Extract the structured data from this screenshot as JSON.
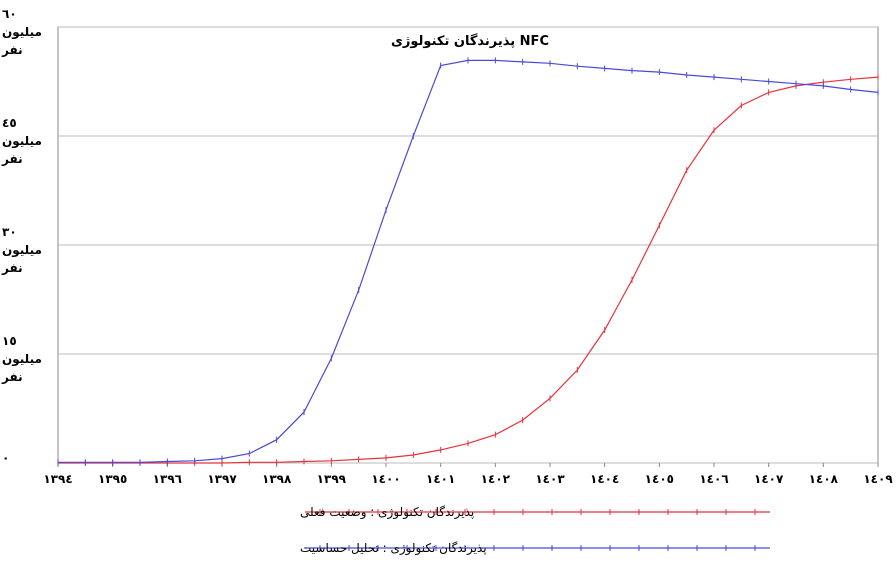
{
  "chart_data": {
    "type": "line",
    "title": "پذیرندگان تکنولوژی NFC",
    "x": [
      1394,
      1394.5,
      1395,
      1395.5,
      1396,
      1396.5,
      1397,
      1397.5,
      1398,
      1398.5,
      1399,
      1399.5,
      1400,
      1400.5,
      1401,
      1401.5,
      1402,
      1402.5,
      1403,
      1403.5,
      1404,
      1404.5,
      1405,
      1405.5,
      1406,
      1406.5,
      1407,
      1407.5,
      1408,
      1408.5,
      1409
    ],
    "series": [
      {
        "name": "پذیرندگان تکنولوژی : وضعیت فعلی",
        "color": "#e8323c",
        "values": [
          0,
          0,
          0,
          0,
          0,
          0,
          0,
          0.1,
          0.1,
          0.2,
          0.3,
          0.5,
          0.7,
          1.1,
          1.8,
          2.7,
          3.9,
          5.9,
          8.9,
          12.8,
          18.3,
          25.2,
          32.7,
          40.3,
          45.8,
          49.2,
          51,
          51.9,
          52.4,
          52.8,
          53.1
        ]
      },
      {
        "name": "پذیرندگان تکنولوژی : تحلیل حساسیت",
        "color": "#4a4ad8",
        "values": [
          0.1,
          0.1,
          0.1,
          0.1,
          0.2,
          0.3,
          0.6,
          1.3,
          3.2,
          7,
          14.4,
          23.8,
          34.8,
          45,
          54.7,
          55.4,
          55.4,
          55.2,
          55,
          54.6,
          54.3,
          54,
          53.8,
          53.4,
          53.1,
          52.8,
          52.5,
          52.2,
          51.9,
          51.4,
          51
        ]
      }
    ],
    "xlim": [
      1394,
      1409
    ],
    "xticks": [
      {
        "value": 1394,
        "label": "١٣٩٤"
      },
      {
        "value": 1395,
        "label": "١٣٩٥"
      },
      {
        "value": 1396,
        "label": "١٣٩٦"
      },
      {
        "value": 1397,
        "label": "١٣٩٧"
      },
      {
        "value": 1398,
        "label": "١٣٩٨"
      },
      {
        "value": 1399,
        "label": "١٣٩٩"
      },
      {
        "value": 1400,
        "label": "١٤٠٠"
      },
      {
        "value": 1401,
        "label": "١٤٠١"
      },
      {
        "value": 1402,
        "label": "١٤٠٢"
      },
      {
        "value": 1403,
        "label": "١٤٠٣"
      },
      {
        "value": 1404,
        "label": "١٤٠٤"
      },
      {
        "value": 1405,
        "label": "١٤٠٥"
      },
      {
        "value": 1406,
        "label": "١٤٠٦"
      },
      {
        "value": 1407,
        "label": "١٤٠٧"
      },
      {
        "value": 1408,
        "label": "١٤٠٨"
      },
      {
        "value": 1409,
        "label": "١٤٠٩"
      }
    ],
    "ylim": [
      0,
      60
    ],
    "yticks": [
      {
        "value": 0,
        "label": "٠"
      },
      {
        "value": 15,
        "label": "١٥\nمیلیون\nنفر"
      },
      {
        "value": 30,
        "label": "٣٠\nمیلیون\nنفر"
      },
      {
        "value": 45,
        "label": "٤٥\nمیلیون\nنفر"
      },
      {
        "value": 60,
        "label": "٦٠\nمیلیون\nنفر"
      }
    ],
    "grid": true
  }
}
